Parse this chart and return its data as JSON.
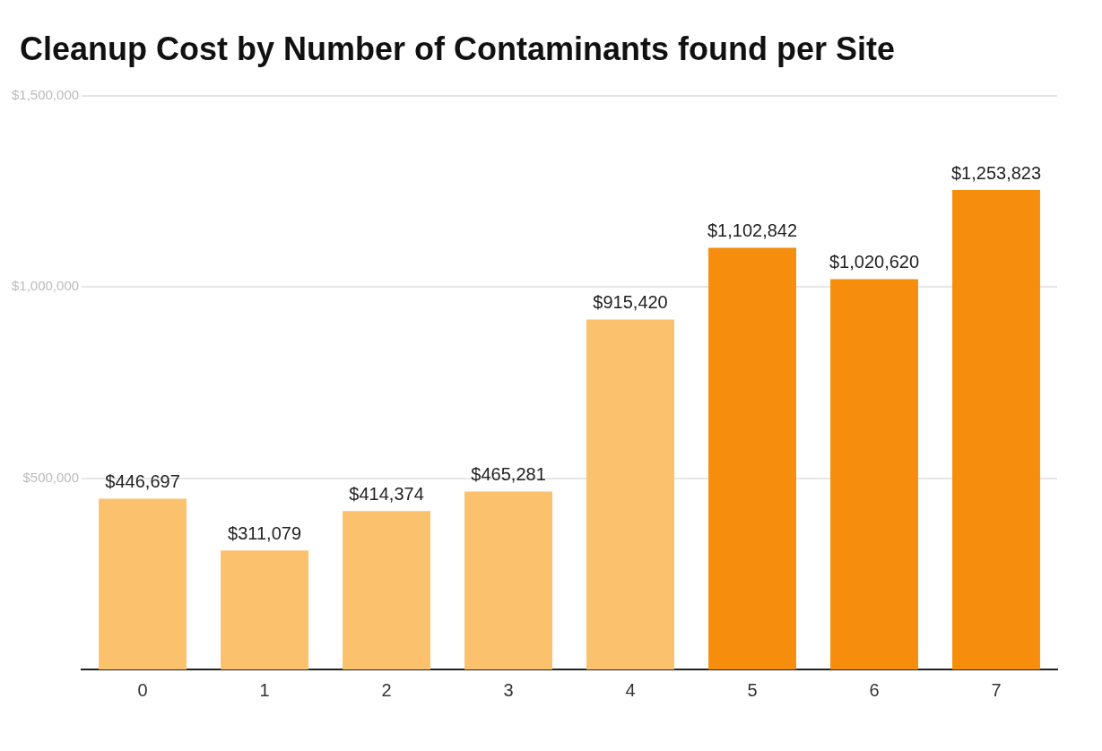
{
  "chart_data": {
    "type": "bar",
    "title": "Cleanup Cost by Number of Contaminants found per Site",
    "categories": [
      "0",
      "1",
      "2",
      "3",
      "4",
      "5",
      "6",
      "7"
    ],
    "values": [
      446697,
      311079,
      414374,
      465281,
      915420,
      1102842,
      1020620,
      1253823
    ],
    "colors": [
      "#fbc16c",
      "#fbc16c",
      "#fbc16c",
      "#fbc16c",
      "#fbc16c",
      "#f78d0c",
      "#f78d0c",
      "#f78d0c"
    ],
    "ylim": [
      0,
      1500000
    ],
    "yticks": [
      {
        "value": 0,
        "label": null
      },
      {
        "value": 500000,
        "label": "$500,000"
      },
      {
        "value": 1000000,
        "label": "$1,000,000"
      },
      {
        "value": 1500000,
        "label": "$1,500,000"
      }
    ],
    "value_labels": [
      "$446,697",
      "$311,079",
      "$414,374",
      "$465,281",
      "$915,420",
      "$1,102,842",
      "$1,020,620",
      "$1,253,823"
    ],
    "grid": "y"
  }
}
